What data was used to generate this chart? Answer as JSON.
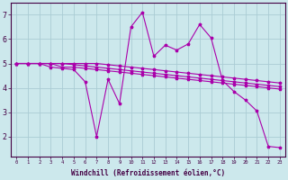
{
  "background_color": "#cce8ec",
  "grid_color": "#aaccd4",
  "line_color": "#aa00aa",
  "spine_color": "#440044",
  "xlim": [
    -0.5,
    23.5
  ],
  "ylim": [
    1.2,
    7.5
  ],
  "yticks": [
    2,
    3,
    4,
    5,
    6,
    7
  ],
  "xticks": [
    0,
    1,
    2,
    3,
    4,
    5,
    6,
    7,
    8,
    9,
    10,
    11,
    12,
    13,
    14,
    15,
    16,
    17,
    18,
    19,
    20,
    21,
    22,
    23
  ],
  "xlabel": "Windchill (Refroidissement éolien,°C)",
  "series": {
    "line1_x": [
      0,
      1,
      2,
      3,
      4,
      5,
      6,
      7,
      8,
      9,
      10,
      11,
      12,
      13,
      14,
      15,
      16,
      17,
      18,
      19,
      20,
      21,
      22,
      23
    ],
    "line1_y": [
      5.0,
      5.0,
      5.0,
      5.0,
      5.0,
      5.0,
      5.0,
      5.0,
      4.95,
      4.9,
      4.85,
      4.8,
      4.75,
      4.7,
      4.65,
      4.6,
      4.55,
      4.5,
      4.45,
      4.4,
      4.35,
      4.3,
      4.25,
      4.2
    ],
    "line2_x": [
      0,
      1,
      2,
      3,
      4,
      5,
      6,
      7,
      8,
      9,
      10,
      11,
      12,
      13,
      14,
      15,
      16,
      17,
      18,
      19,
      20,
      21,
      22,
      23
    ],
    "line2_y": [
      5.0,
      5.0,
      5.0,
      5.0,
      5.0,
      4.95,
      4.9,
      4.85,
      4.8,
      4.75,
      4.7,
      4.65,
      4.6,
      4.55,
      4.5,
      4.45,
      4.4,
      4.35,
      4.3,
      4.25,
      4.2,
      4.15,
      4.1,
      4.05
    ],
    "line3_x": [
      0,
      1,
      2,
      3,
      4,
      5,
      6,
      7,
      8,
      9,
      10,
      11,
      12,
      13,
      14,
      15,
      16,
      17,
      18,
      19,
      20,
      21,
      22,
      23
    ],
    "line3_y": [
      5.0,
      5.0,
      5.0,
      5.0,
      4.85,
      4.85,
      4.8,
      4.75,
      4.7,
      4.65,
      4.6,
      4.55,
      4.5,
      4.45,
      4.4,
      4.35,
      4.3,
      4.25,
      4.2,
      4.15,
      4.1,
      4.05,
      4.0,
      3.95
    ],
    "line4_x": [
      0,
      1,
      2,
      3,
      4,
      5,
      6,
      7,
      8,
      9,
      10,
      11,
      12,
      13,
      14,
      15,
      16,
      17,
      18,
      19,
      20,
      21,
      22,
      23
    ],
    "line4_y": [
      5.0,
      5.0,
      5.0,
      4.85,
      4.8,
      4.75,
      4.25,
      2.0,
      4.35,
      3.35,
      6.5,
      7.1,
      5.3,
      5.75,
      5.55,
      5.8,
      6.6,
      6.05,
      4.3,
      3.85,
      3.5,
      3.05,
      1.6,
      1.55
    ]
  }
}
